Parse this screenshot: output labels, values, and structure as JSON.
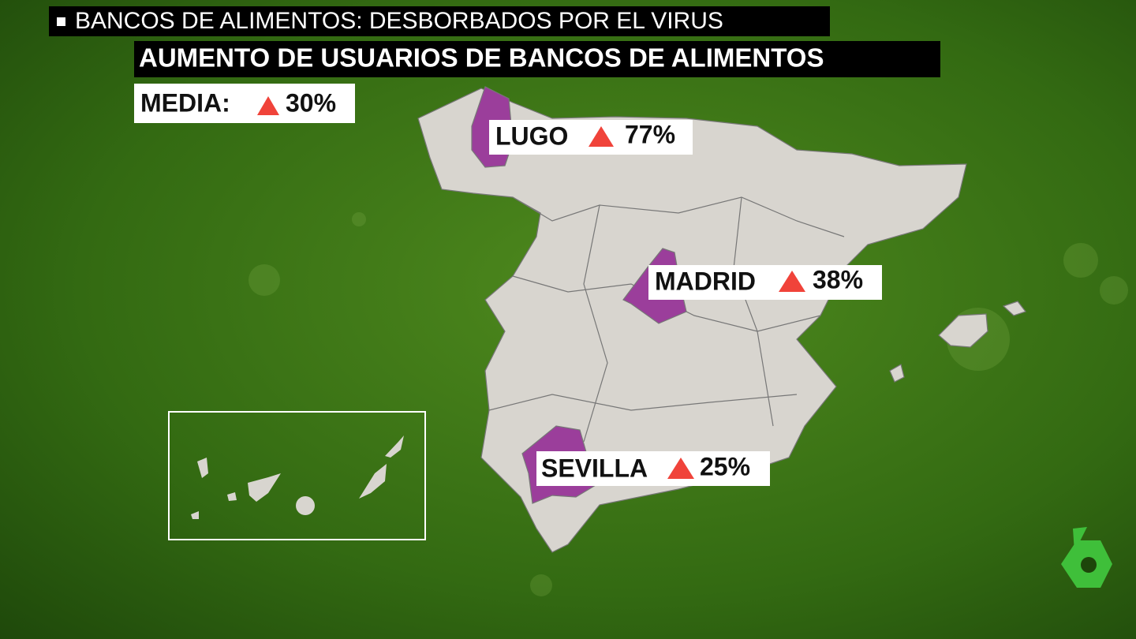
{
  "header": {
    "kicker": "BANCOS DE ALIMENTOS: DESBORBADOS POR EL VIRUS",
    "title": "AUMENTO DE USUARIOS DE BANCOS DE ALIMENTOS"
  },
  "average": {
    "label": "MEDIA:",
    "change": "30%"
  },
  "regions": [
    {
      "name": "LUGO",
      "change": "77%"
    },
    {
      "name": "MADRID",
      "change": "38%"
    },
    {
      "name": "SEVILLA",
      "change": "25%"
    }
  ]
}
